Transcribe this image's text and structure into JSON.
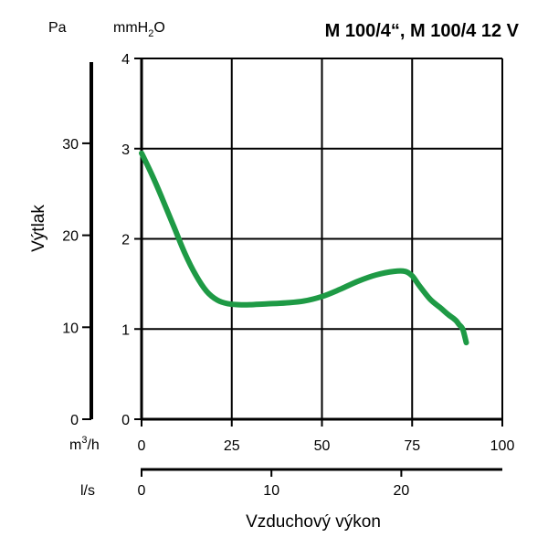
{
  "chart_data": {
    "type": "line",
    "title": "M 100/4“, M 100/4 12 V",
    "ylabel": "Výtlak",
    "xlabel": "Vzduchový výkon",
    "x_unit": "m³/h",
    "x_unit_base": "m",
    "x_unit_sup": "3",
    "x_unit_tail": "/h",
    "x2_unit": "l/s",
    "y_unit_pa": "Pa",
    "y_unit_mmh2o": "mmH₂O",
    "y_unit_mm_base": "mmH",
    "y_unit_mm_sub": "2",
    "y_unit_mm_tail": "O",
    "xlim": [
      0,
      100
    ],
    "ylim": [
      0,
      4
    ],
    "x_ticks": [
      "0",
      "25",
      "50",
      "75",
      "100"
    ],
    "x_tick_values": [
      0,
      25,
      50,
      75,
      100
    ],
    "x2_ticks": [
      "0",
      "10",
      "20"
    ],
    "x2_tick_values": [
      0,
      10,
      20
    ],
    "y_ticks": [
      "0",
      "1",
      "2",
      "3",
      "4"
    ],
    "y_tick_values": [
      0,
      1,
      2,
      3,
      4
    ],
    "y_pa_ticks": [
      "0",
      "10",
      "20",
      "30"
    ],
    "y_pa_tick_values": [
      0,
      10,
      20,
      30
    ],
    "grid": true,
    "series": [
      {
        "color": "#1e9a45",
        "x": [
          0,
          3,
          6,
          9,
          12,
          15,
          18,
          21,
          24,
          27,
          30,
          35,
          40,
          45,
          50,
          55,
          60,
          65,
          70,
          73,
          75,
          77,
          80,
          83,
          85,
          87,
          88,
          89,
          90
        ],
        "y": [
          2.95,
          2.7,
          2.42,
          2.13,
          1.84,
          1.6,
          1.42,
          1.32,
          1.28,
          1.27,
          1.27,
          1.28,
          1.29,
          1.31,
          1.36,
          1.44,
          1.53,
          1.6,
          1.64,
          1.64,
          1.59,
          1.48,
          1.33,
          1.23,
          1.16,
          1.1,
          1.05,
          1.0,
          0.85
        ]
      }
    ]
  }
}
